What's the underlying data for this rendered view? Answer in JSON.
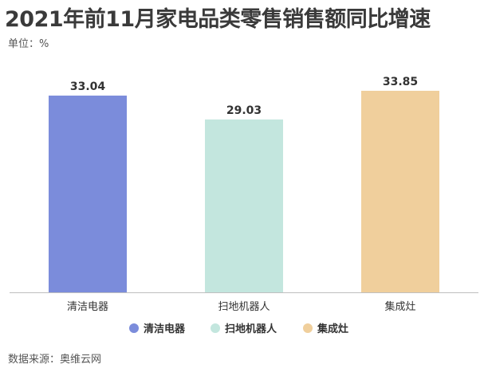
{
  "title": "2021年前11月家电品类零售销售额同比增速",
  "unit_label": "单位：%",
  "source_label": "数据来源：奥维云网",
  "chart_data": {
    "type": "bar",
    "title": "2021年前11月家电品类零售销售额同比增速",
    "categories": [
      "清洁电器",
      "扫地机器人",
      "集成灶"
    ],
    "values": [
      33.04,
      29.03,
      33.85
    ],
    "value_labels": [
      "33.04",
      "29.03",
      "33.85"
    ],
    "colors": [
      "#7b8cdb",
      "#c3e6de",
      "#f0cf9c"
    ],
    "ylim": [
      0,
      40
    ],
    "grid": false,
    "legend": {
      "position": "bottom",
      "entries": [
        "清洁电器",
        "扫地机器人",
        "集成灶"
      ]
    }
  }
}
